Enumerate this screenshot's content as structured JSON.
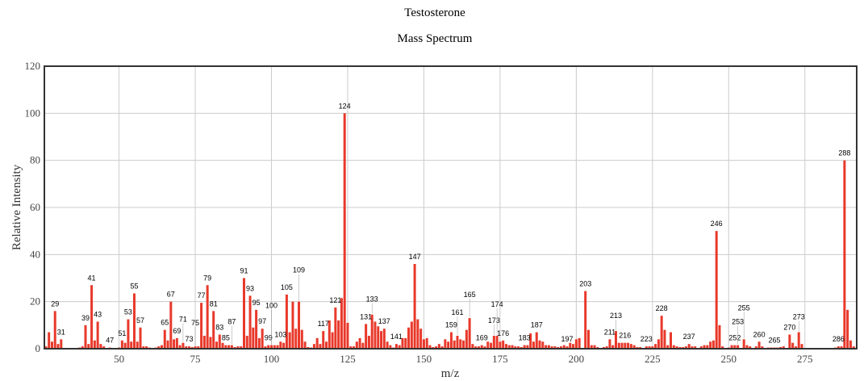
{
  "chart_data": {
    "type": "bar",
    "title": "Testosterone",
    "subtitle": "Mass Spectrum",
    "xlabel": "m/z",
    "ylabel": "Relative Intensity",
    "xlim": [
      25.5,
      292
    ],
    "ylim": [
      0,
      120
    ],
    "xticks": [
      50,
      75,
      100,
      125,
      150,
      175,
      200,
      225,
      250,
      275
    ],
    "yticks": [
      0,
      20,
      40,
      60,
      80,
      100,
      120
    ],
    "grid": true,
    "bar_color": "#e8392b",
    "peaks": [
      [
        26,
        1
      ],
      [
        27,
        7
      ],
      [
        28,
        3
      ],
      [
        29,
        16
      ],
      [
        30,
        2
      ],
      [
        31,
        4
      ],
      [
        37,
        0.5
      ],
      [
        38,
        1
      ],
      [
        39,
        10
      ],
      [
        40,
        2
      ],
      [
        41,
        27
      ],
      [
        42,
        3.5
      ],
      [
        43,
        11.5
      ],
      [
        44,
        2
      ],
      [
        45,
        1
      ],
      [
        47,
        0.5
      ],
      [
        50,
        0.5
      ],
      [
        51,
        3.5
      ],
      [
        52,
        2.5
      ],
      [
        53,
        12.5
      ],
      [
        54,
        3
      ],
      [
        55,
        23.5
      ],
      [
        56,
        3
      ],
      [
        57,
        9
      ],
      [
        58,
        1
      ],
      [
        59,
        1
      ],
      [
        60,
        0.5
      ],
      [
        62,
        0.5
      ],
      [
        63,
        1
      ],
      [
        64,
        1.5
      ],
      [
        65,
        8
      ],
      [
        66,
        3.5
      ],
      [
        67,
        20
      ],
      [
        68,
        4
      ],
      [
        69,
        4.5
      ],
      [
        70,
        1.5
      ],
      [
        71,
        2.5
      ],
      [
        72,
        1
      ],
      [
        73,
        1
      ],
      [
        74,
        0.7
      ],
      [
        75,
        1
      ],
      [
        76,
        1
      ],
      [
        77,
        19.5
      ],
      [
        78,
        5.5
      ],
      [
        79,
        27
      ],
      [
        80,
        5
      ],
      [
        81,
        16
      ],
      [
        82,
        3
      ],
      [
        83,
        6
      ],
      [
        84,
        2.5
      ],
      [
        85,
        1.5
      ],
      [
        86,
        1.5
      ],
      [
        87,
        1.5
      ],
      [
        88,
        0.7
      ],
      [
        89,
        1
      ],
      [
        90,
        1
      ],
      [
        91,
        30
      ],
      [
        92,
        5.5
      ],
      [
        93,
        22.5
      ],
      [
        94,
        9
      ],
      [
        95,
        16.5
      ],
      [
        96,
        4.5
      ],
      [
        97,
        8.5
      ],
      [
        98,
        1
      ],
      [
        99,
        1.5
      ],
      [
        100,
        1.5
      ],
      [
        101,
        1.5
      ],
      [
        102,
        1.5
      ],
      [
        103,
        3
      ],
      [
        104,
        2.5
      ],
      [
        105,
        23
      ],
      [
        106,
        7
      ],
      [
        107,
        20
      ],
      [
        108,
        8.5
      ],
      [
        109,
        20
      ],
      [
        110,
        8
      ],
      [
        111,
        3
      ],
      [
        112,
        0.7
      ],
      [
        113,
        0.5
      ],
      [
        114,
        2
      ],
      [
        115,
        4.5
      ],
      [
        116,
        2
      ],
      [
        117,
        7.5
      ],
      [
        118,
        3
      ],
      [
        119,
        12
      ],
      [
        120,
        7
      ],
      [
        121,
        17.5
      ],
      [
        122,
        12
      ],
      [
        123,
        21.5
      ],
      [
        124,
        100
      ],
      [
        125,
        11
      ],
      [
        126,
        1
      ],
      [
        127,
        1
      ],
      [
        128,
        3
      ],
      [
        129,
        4.5
      ],
      [
        130,
        2.5
      ],
      [
        131,
        10.5
      ],
      [
        132,
        5.5
      ],
      [
        133,
        14.5
      ],
      [
        134,
        11.5
      ],
      [
        135,
        9.5
      ],
      [
        136,
        7.5
      ],
      [
        137,
        8.5
      ],
      [
        138,
        3
      ],
      [
        139,
        1.5
      ],
      [
        140,
        0.5
      ],
      [
        141,
        2
      ],
      [
        142,
        1.5
      ],
      [
        143,
        4.5
      ],
      [
        144,
        4.5
      ],
      [
        145,
        9
      ],
      [
        146,
        11.5
      ],
      [
        147,
        36
      ],
      [
        148,
        12.5
      ],
      [
        149,
        8.5
      ],
      [
        150,
        4
      ],
      [
        151,
        4.5
      ],
      [
        152,
        1.5
      ],
      [
        153,
        0.7
      ],
      [
        154,
        1
      ],
      [
        155,
        2
      ],
      [
        156,
        1
      ],
      [
        157,
        4
      ],
      [
        158,
        3
      ],
      [
        159,
        7
      ],
      [
        160,
        3.5
      ],
      [
        161,
        5.5
      ],
      [
        162,
        4
      ],
      [
        163,
        3.5
      ],
      [
        164,
        8
      ],
      [
        165,
        13
      ],
      [
        166,
        2
      ],
      [
        167,
        1
      ],
      [
        168,
        1
      ],
      [
        169,
        1.5
      ],
      [
        170,
        1
      ],
      [
        171,
        3
      ],
      [
        172,
        2.5
      ],
      [
        173,
        5.5
      ],
      [
        174,
        5.5
      ],
      [
        175,
        3
      ],
      [
        176,
        3.5
      ],
      [
        177,
        2
      ],
      [
        178,
        1.5
      ],
      [
        179,
        1.5
      ],
      [
        180,
        1
      ],
      [
        181,
        1
      ],
      [
        182,
        0.7
      ],
      [
        183,
        1.5
      ],
      [
        184,
        1.5
      ],
      [
        185,
        6.5
      ],
      [
        186,
        3
      ],
      [
        187,
        7
      ],
      [
        188,
        3.5
      ],
      [
        189,
        3
      ],
      [
        190,
        1.5
      ],
      [
        191,
        1.5
      ],
      [
        192,
        1
      ],
      [
        193,
        1
      ],
      [
        194,
        0.7
      ],
      [
        195,
        1
      ],
      [
        196,
        1.5
      ],
      [
        197,
        1
      ],
      [
        198,
        2.5
      ],
      [
        199,
        2
      ],
      [
        200,
        4
      ],
      [
        201,
        4.5
      ],
      [
        203,
        24.5
      ],
      [
        204,
        8
      ],
      [
        205,
        1.5
      ],
      [
        206,
        1.5
      ],
      [
        207,
        0.7
      ],
      [
        209,
        0.7
      ],
      [
        210,
        1
      ],
      [
        211,
        4
      ],
      [
        212,
        1.5
      ],
      [
        213,
        7.5
      ],
      [
        214,
        2.5
      ],
      [
        215,
        2.5
      ],
      [
        216,
        2.5
      ],
      [
        217,
        2.5
      ],
      [
        218,
        2
      ],
      [
        219,
        1.5
      ],
      [
        220,
        0.7
      ],
      [
        221,
        0.7
      ],
      [
        223,
        1
      ],
      [
        224,
        1
      ],
      [
        225,
        1
      ],
      [
        226,
        2
      ],
      [
        227,
        4
      ],
      [
        228,
        14
      ],
      [
        229,
        8
      ],
      [
        230,
        1.5
      ],
      [
        231,
        7
      ],
      [
        232,
        1.5
      ],
      [
        233,
        1
      ],
      [
        234,
        0.7
      ],
      [
        235,
        0.7
      ],
      [
        236,
        1
      ],
      [
        237,
        2
      ],
      [
        238,
        1
      ],
      [
        239,
        1
      ],
      [
        241,
        1
      ],
      [
        242,
        1.5
      ],
      [
        243,
        1.5
      ],
      [
        244,
        3
      ],
      [
        245,
        3.5
      ],
      [
        246,
        50
      ],
      [
        247,
        10
      ],
      [
        248,
        1
      ],
      [
        250,
        0.5
      ],
      [
        251,
        1.5
      ],
      [
        252,
        1.5
      ],
      [
        253,
        1.5
      ],
      [
        255,
        4
      ],
      [
        256,
        1.5
      ],
      [
        257,
        1
      ],
      [
        259,
        1
      ],
      [
        260,
        3
      ],
      [
        261,
        1
      ],
      [
        263,
        0.5
      ],
      [
        264,
        0.5
      ],
      [
        265,
        0.5
      ],
      [
        266,
        0.5
      ],
      [
        267,
        0.7
      ],
      [
        268,
        1
      ],
      [
        270,
        6
      ],
      [
        271,
        2.5
      ],
      [
        272,
        1
      ],
      [
        273,
        7
      ],
      [
        274,
        2
      ],
      [
        285,
        0.5
      ],
      [
        286,
        1
      ],
      [
        287,
        1
      ],
      [
        288,
        80
      ],
      [
        289,
        16.5
      ],
      [
        290,
        3.5
      ],
      [
        291,
        1
      ]
    ],
    "labeled_peaks": [
      29,
      31,
      39,
      41,
      43,
      47,
      51,
      53,
      55,
      57,
      65,
      67,
      69,
      71,
      73,
      75,
      77,
      79,
      81,
      83,
      85,
      87,
      91,
      93,
      95,
      97,
      99,
      100,
      103,
      105,
      109,
      117,
      121,
      124,
      131,
      133,
      137,
      141,
      147,
      159,
      161,
      165,
      169,
      173,
      174,
      176,
      183,
      187,
      197,
      203,
      211,
      213,
      216,
      223,
      228,
      237,
      246,
      252,
      253,
      255,
      260,
      265,
      270,
      273,
      286,
      288
    ]
  }
}
